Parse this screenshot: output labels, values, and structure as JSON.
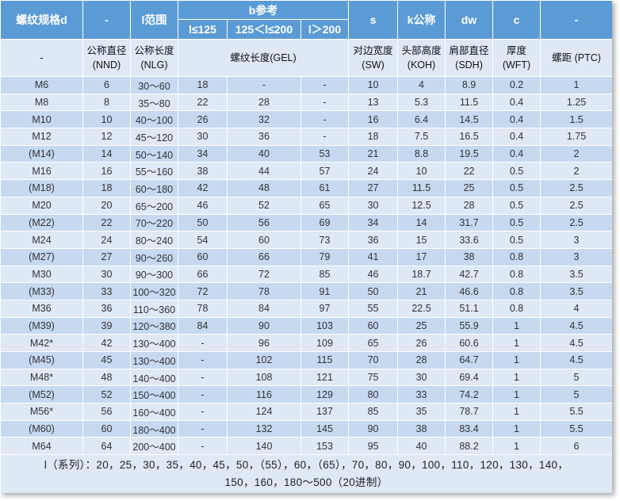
{
  "header": {
    "h1": "螺纹规格d",
    "h2": "-",
    "h3": "l范围",
    "b_group": "b参考",
    "b1": "l≤125",
    "b2": "125＜l≤200",
    "b3": "l＞200",
    "s": "s",
    "k": "k公称",
    "dw": "dw",
    "c": "c",
    "last": "-"
  },
  "subheader": {
    "c1": "-",
    "c2": "公称直径 (NND)",
    "c3": "公称长度 (NLG)",
    "c4": "螺纹长度(GEL)",
    "c5": "对边宽度 (SW)",
    "c6": "头部高度 (KOH)",
    "c7": "肩部直径 (SDH)",
    "c8": "厚度 (WFT)",
    "c9": "螺距 (PTC)"
  },
  "rows": [
    [
      "M6",
      "6",
      "30～60",
      "18",
      "-",
      "-",
      "10",
      "4",
      "8.9",
      "0.2",
      "1"
    ],
    [
      "M8",
      "8",
      "35～80",
      "22",
      "28",
      "-",
      "13",
      "5.3",
      "11.5",
      "0.4",
      "1.25"
    ],
    [
      "M10",
      "10",
      "40～100",
      "26",
      "32",
      "-",
      "16",
      "6.4",
      "14.5",
      "0.4",
      "1.5"
    ],
    [
      "M12",
      "12",
      "45～120",
      "30",
      "36",
      "-",
      "18",
      "7.5",
      "16.5",
      "0.4",
      "1.75"
    ],
    [
      "(M14)",
      "14",
      "50～140",
      "34",
      "40",
      "53",
      "21",
      "8.8",
      "19.5",
      "0.4",
      "2"
    ],
    [
      "M16",
      "16",
      "55～160",
      "38",
      "44",
      "57",
      "24",
      "10",
      "22",
      "0.5",
      "2"
    ],
    [
      "(M18)",
      "18",
      "60～180",
      "42",
      "48",
      "61",
      "27",
      "11.5",
      "25",
      "0.5",
      "2.5"
    ],
    [
      "M20",
      "20",
      "65～200",
      "46",
      "52",
      "65",
      "30",
      "12.5",
      "28",
      "0.5",
      "2.5"
    ],
    [
      "(M22)",
      "22",
      "70～220",
      "50",
      "56",
      "69",
      "34",
      "14",
      "31.7",
      "0.5",
      "2.5"
    ],
    [
      "M24",
      "24",
      "80～240",
      "54",
      "60",
      "73",
      "36",
      "15",
      "33.6",
      "0.5",
      "3"
    ],
    [
      "(M27)",
      "27",
      "90～260",
      "60",
      "66",
      "79",
      "41",
      "17",
      "38",
      "0.8",
      "3"
    ],
    [
      "M30",
      "30",
      "90～300",
      "66",
      "72",
      "85",
      "46",
      "18.7",
      "42.7",
      "0.8",
      "3.5"
    ],
    [
      "(M33)",
      "33",
      "100～320",
      "72",
      "78",
      "91",
      "50",
      "21",
      "46.6",
      "0.8",
      "3.5"
    ],
    [
      "M36",
      "36",
      "110～360",
      "78",
      "84",
      "97",
      "55",
      "22.5",
      "51.1",
      "0.8",
      "4"
    ],
    [
      "(M39)",
      "39",
      "120～380",
      "84",
      "90",
      "103",
      "60",
      "25",
      "55.9",
      "1",
      "4.5"
    ],
    [
      "M42*",
      "42",
      "130～400",
      "-",
      "96",
      "109",
      "65",
      "26",
      "60.6",
      "1",
      "4.5"
    ],
    [
      "(M45)",
      "45",
      "130～400",
      "-",
      "102",
      "115",
      "70",
      "28",
      "64.7",
      "1",
      "4.5"
    ],
    [
      "M48*",
      "48",
      "140～400",
      "-",
      "108",
      "121",
      "75",
      "30",
      "69.4",
      "1",
      "5"
    ],
    [
      "(M52)",
      "52",
      "150～400",
      "-",
      "116",
      "129",
      "80",
      "33",
      "74.2",
      "1",
      "5"
    ],
    [
      "M56*",
      "56",
      "160～400",
      "-",
      "124",
      "137",
      "85",
      "35",
      "78.7",
      "1",
      "5.5"
    ],
    [
      "(M60)",
      "60",
      "180～400",
      "-",
      "132",
      "145",
      "90",
      "38",
      "83.4",
      "1",
      "5.5"
    ],
    [
      "M64",
      "64",
      "200～400",
      "-",
      "140",
      "153",
      "95",
      "40",
      "88.2",
      "1",
      "6"
    ]
  ],
  "footer": "l（系列）：20，25，30，35，40，45，50，（55），60，（65），70，80，90，100，110，120，130，140，150，160，180～500（20进制）"
}
